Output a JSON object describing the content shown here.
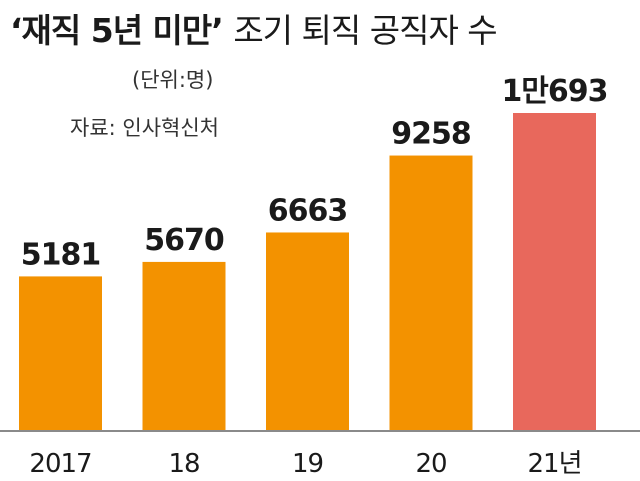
{
  "header": {
    "title_main": "‘재직 5년 미만’",
    "title_rest": "조기 퇴직 공직자 수",
    "unit": "(단위:명)",
    "source": "자료: 인사혁신처"
  },
  "colors": {
    "bar_default": "#F39200",
    "bar_highlight": "#E8685C",
    "axis": "#8a8a8a"
  },
  "chart_data": {
    "type": "bar",
    "title": "‘재직 5년 미만’ 조기 퇴직 공직자 수",
    "unit": "(단위:명)",
    "source": "자료: 인사혁신처",
    "categories": [
      "2017",
      "18",
      "19",
      "20",
      "21년"
    ],
    "values": [
      5181,
      5670,
      6663,
      9258,
      10693
    ],
    "data_labels": [
      "5181",
      "5670",
      "6663",
      "9258",
      "1만693"
    ],
    "highlight_index": 4,
    "grid": false,
    "legend": "none"
  }
}
